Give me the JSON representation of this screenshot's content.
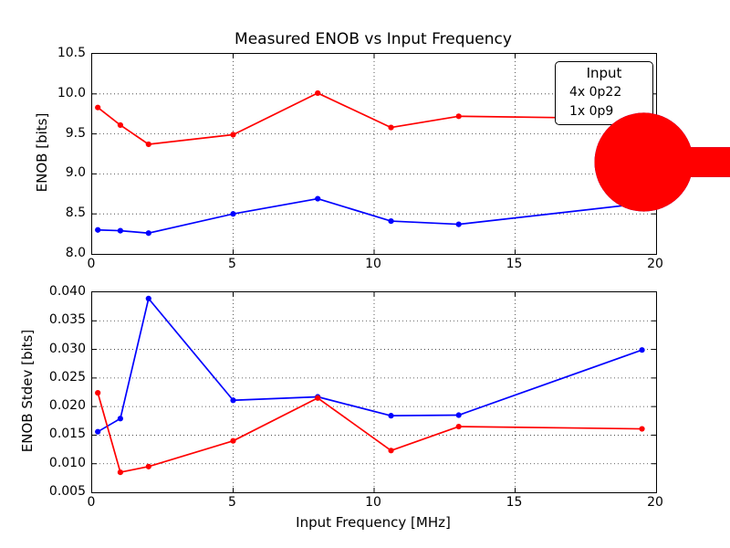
{
  "figure": {
    "background": "#ffffff"
  },
  "legend": {
    "title": "Input",
    "position": "upper right",
    "entries": [
      {
        "label": "4x 0p22",
        "color": "#0000ff"
      },
      {
        "label": "1x 0p9",
        "color": "#ff0000"
      }
    ]
  },
  "chart_data": [
    {
      "type": "line",
      "title": "Measured ENOB vs Input Frequency",
      "xlabel": "",
      "ylabel": "ENOB [bits]",
      "grid": true,
      "xlim": [
        0,
        20
      ],
      "ylim": [
        8.0,
        10.5
      ],
      "x": [
        0.2,
        1,
        2,
        5,
        8,
        10.6,
        13,
        19.5
      ],
      "series": [
        {
          "name": "4x 0p22",
          "color": "#0000ff",
          "values": [
            8.3,
            8.29,
            8.26,
            8.5,
            8.69,
            8.41,
            8.37,
            8.63
          ]
        },
        {
          "name": "1x 0p9",
          "color": "#ff0000",
          "values": [
            9.83,
            9.61,
            9.37,
            9.49,
            10.01,
            9.58,
            9.72,
            9.69
          ]
        }
      ],
      "xticks": {
        "values": [
          0,
          5,
          10,
          15,
          20
        ],
        "labels": [
          "0",
          "5",
          "10",
          "15",
          "20"
        ]
      },
      "yticks": {
        "values": [
          8.0,
          8.5,
          9.0,
          9.5,
          10.0,
          10.5
        ],
        "labels": [
          "8.0",
          "8.5",
          "9.0",
          "9.5",
          "10.0",
          "10.5"
        ]
      }
    },
    {
      "type": "line",
      "title": "",
      "xlabel": "Input Frequency [MHz]",
      "ylabel": "ENOB Stdev [bits]",
      "grid": true,
      "xlim": [
        0,
        20
      ],
      "ylim": [
        0.005,
        0.04
      ],
      "x": [
        0.2,
        1,
        2,
        5,
        8,
        10.6,
        13,
        19.5
      ],
      "series": [
        {
          "name": "4x 0p22",
          "color": "#0000ff",
          "values": [
            0.0156,
            0.0179,
            0.0389,
            0.0211,
            0.0217,
            0.0184,
            0.0185,
            0.0299
          ]
        },
        {
          "name": "1x 0p9",
          "color": "#ff0000",
          "values": [
            0.0224,
            0.0085,
            0.0095,
            0.014,
            0.0215,
            0.0123,
            0.0165,
            0.0161
          ]
        }
      ],
      "xticks": {
        "values": [
          0,
          5,
          10,
          15,
          20
        ],
        "labels": [
          "0",
          "5",
          "10",
          "15",
          "20"
        ]
      },
      "yticks": {
        "values": [
          0.005,
          0.01,
          0.015,
          0.02,
          0.025,
          0.03,
          0.035,
          0.04
        ],
        "labels": [
          "0.005",
          "0.010",
          "0.015",
          "0.020",
          "0.025",
          "0.030",
          "0.035",
          "0.040"
        ]
      }
    }
  ]
}
